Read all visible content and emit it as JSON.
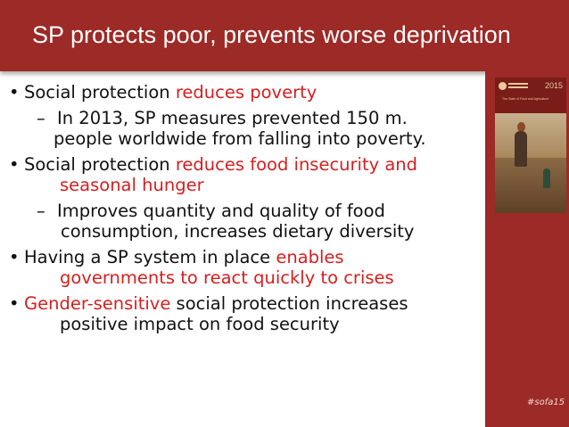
{
  "slide": {
    "title": "SP protects poor, prevents worse deprivation",
    "hashtag": "#sofa15",
    "cover": {
      "year": "2015",
      "subtitle": "The State of Food and Agriculture"
    },
    "bullets": [
      {
        "pre": "Social protection ",
        "hl": "reduces poverty",
        "post": ""
      },
      {
        "dash": "–",
        "line1": "In 2013, SP measures prevented 150 m.",
        "line2": "people worldwide from falling into poverty."
      },
      {
        "pre": "Social protection ",
        "hl1": "reduces food insecurity and",
        "hl2": "seasonal hunger"
      },
      {
        "dash": "–",
        "line1": "Improves quantity and quality of food",
        "line2": "consumption, increases dietary diversity"
      },
      {
        "pre": "Having a SP system in place ",
        "hl1": "enables",
        "hl2": "governments to react quickly to crises"
      },
      {
        "hl": "Gender-sensitive",
        "post1": " social protection increases",
        "line2": "positive impact on food security"
      }
    ]
  },
  "colors": {
    "accent": "#9c2a26",
    "highlight": "#d42020"
  }
}
